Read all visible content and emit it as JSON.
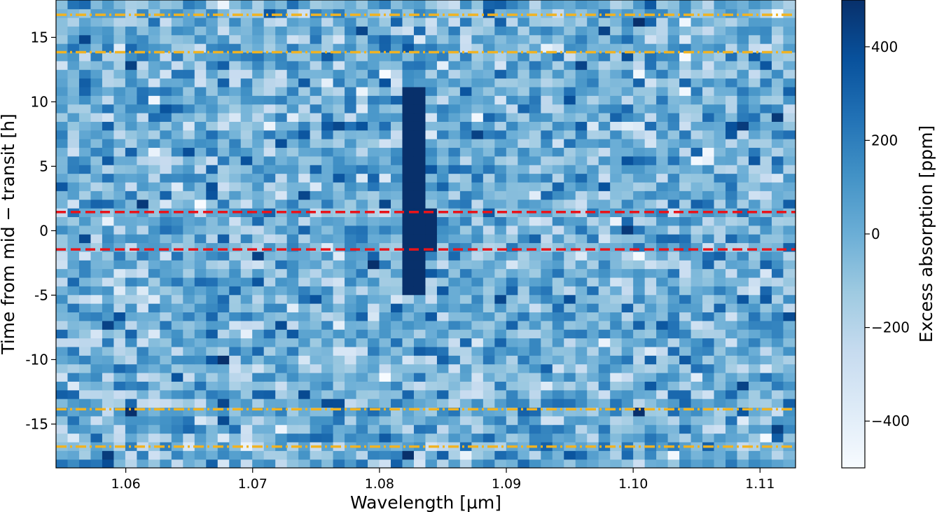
{
  "chart_data": {
    "type": "heatmap",
    "xlabel": "Wavelength [µm]",
    "ylabel": "Time from mid − transit [h]",
    "xlim": [
      1.0545,
      1.1128
    ],
    "ylim": [
      -18.4,
      17.9
    ],
    "x_ticks": [
      1.06,
      1.07,
      1.08,
      1.09,
      1.1,
      1.11
    ],
    "x_tick_labels": [
      "1.06",
      "1.07",
      "1.08",
      "1.09",
      "1.10",
      "1.11"
    ],
    "y_ticks": [
      15,
      10,
      5,
      0,
      -5,
      -10,
      -15
    ],
    "y_tick_labels": [
      "15",
      "10",
      "5",
      "0",
      "-5",
      "-10",
      "-15"
    ],
    "colormap": "Blues",
    "colorbar": {
      "label": "Excess absorption [ppm]",
      "range": [
        -500,
        500
      ],
      "ticks": [
        400,
        200,
        0,
        -200,
        -400
      ],
      "tick_labels": [
        "400",
        "200",
        "0",
        "−200",
        "−400"
      ]
    },
    "grid": {
      "x_start": 1.0545,
      "x_step": 0.00091,
      "n_cols": 64,
      "y_start": -18.4,
      "y_step": 0.672,
      "n_rows": 54,
      "noise_sigma_ppm": 170,
      "seed": 7
    },
    "absorption_feature": {
      "wavelength_range": [
        1.0822,
        1.084
      ],
      "time_range": [
        -5.2,
        11.2
      ],
      "core_time_range": [
        -1.6,
        1.6
      ],
      "core_wavelength_range": [
        1.0814,
        1.0848
      ],
      "value_ppm": 520
    },
    "lines": [
      {
        "kind": "transit",
        "y": 1.45,
        "color": "#e8141a",
        "style": "dashed"
      },
      {
        "kind": "transit",
        "y": -1.45,
        "color": "#e8141a",
        "style": "dashed"
      },
      {
        "kind": "boundary",
        "y": 16.75,
        "color": "#f0b323",
        "style": "dashdot"
      },
      {
        "kind": "boundary",
        "y": 13.85,
        "color": "#f0b323",
        "style": "dashdot"
      },
      {
        "kind": "boundary",
        "y": -13.85,
        "color": "#f0b323",
        "style": "dashdot"
      },
      {
        "kind": "boundary",
        "y": -16.75,
        "color": "#f0b323",
        "style": "dashdot"
      }
    ]
  }
}
